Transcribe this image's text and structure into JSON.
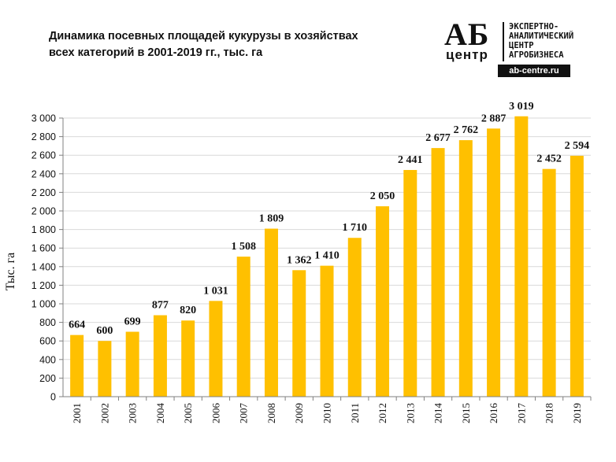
{
  "header": {
    "title_line1": "Динамика посевных площадей кукурузы в хозяйствах",
    "title_line2": "всех категорий в 2001-2019 гг., тыс. га"
  },
  "logo": {
    "mark": "АБ",
    "sub": "центр",
    "tagline": [
      "ЭКСПЕРТНО-",
      "АНАЛИТИЧЕСКИЙ",
      "ЦЕНТР",
      "АГРОБИЗНЕСА"
    ],
    "url": "ab-centre.ru"
  },
  "colors": {
    "bar": "#FFC000",
    "grid": "#D9D9D9",
    "axis": "#808080"
  },
  "chart_data": {
    "type": "bar",
    "title": "Динамика посевных площадей кукурузы в хозяйствах всех категорий в 2001-2019 гг., тыс. га",
    "xlabel": "",
    "ylabel": "Тыс. га",
    "ylim": [
      0,
      3000
    ],
    "ystep": 200,
    "grid": true,
    "categories": [
      "2001",
      "2002",
      "2003",
      "2004",
      "2005",
      "2006",
      "2007",
      "2008",
      "2009",
      "2010",
      "2011",
      "2012",
      "2013",
      "2014",
      "2015",
      "2016",
      "2017",
      "2018",
      "2019"
    ],
    "values": [
      664,
      600,
      699,
      877,
      820,
      1031,
      1508,
      1809,
      1362,
      1410,
      1710,
      2050,
      2441,
      2677,
      2762,
      2887,
      3019,
      2452,
      2594
    ],
    "value_labels": [
      "664",
      "600",
      "699",
      "877",
      "820",
      "1 031",
      "1 508",
      "1 809",
      "1 362",
      "1 410",
      "1 710",
      "2 050",
      "2 441",
      "2 677",
      "2 762",
      "2 887",
      "3 019",
      "2 452",
      "2 594"
    ],
    "ytick_labels": [
      "0",
      "200",
      "400",
      "600",
      "800",
      "1 000",
      "1 200",
      "1 400",
      "1 600",
      "1 800",
      "2 000",
      "2 200",
      "2 400",
      "2 600",
      "2 800",
      "3 000"
    ]
  }
}
